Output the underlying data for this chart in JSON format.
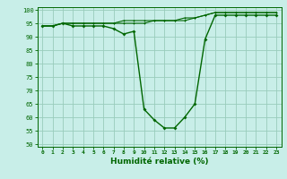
{
  "x": [
    0,
    1,
    2,
    3,
    4,
    5,
    6,
    7,
    8,
    9,
    10,
    11,
    12,
    13,
    14,
    15,
    16,
    17,
    18,
    19,
    20,
    21,
    22,
    23
  ],
  "y_main": [
    94,
    94,
    95,
    94,
    94,
    94,
    94,
    93,
    91,
    92,
    63,
    59,
    56,
    56,
    60,
    65,
    89,
    98,
    98,
    98,
    98,
    98,
    98,
    98
  ],
  "y_upper1": [
    94,
    94,
    95,
    95,
    95,
    95,
    95,
    95,
    95,
    95,
    95,
    96,
    96,
    96,
    96,
    97,
    98,
    99,
    99,
    99,
    99,
    99,
    99,
    99
  ],
  "y_upper2": [
    94,
    94,
    95,
    95,
    95,
    95,
    95,
    95,
    96,
    96,
    96,
    96,
    96,
    96,
    97,
    97,
    98,
    99,
    99,
    99,
    99,
    99,
    99,
    99
  ],
  "line_color": "#006600",
  "bg_color": "#c8eee8",
  "grid_color": "#99ccbb",
  "xlabel": "Humidité relative (%)",
  "xlim": [
    -0.5,
    23.5
  ],
  "ylim": [
    49,
    101
  ],
  "yticks": [
    50,
    55,
    60,
    65,
    70,
    75,
    80,
    85,
    90,
    95,
    100
  ],
  "xticks": [
    0,
    1,
    2,
    3,
    4,
    5,
    6,
    7,
    8,
    9,
    10,
    11,
    12,
    13,
    14,
    15,
    16,
    17,
    18,
    19,
    20,
    21,
    22,
    23
  ]
}
